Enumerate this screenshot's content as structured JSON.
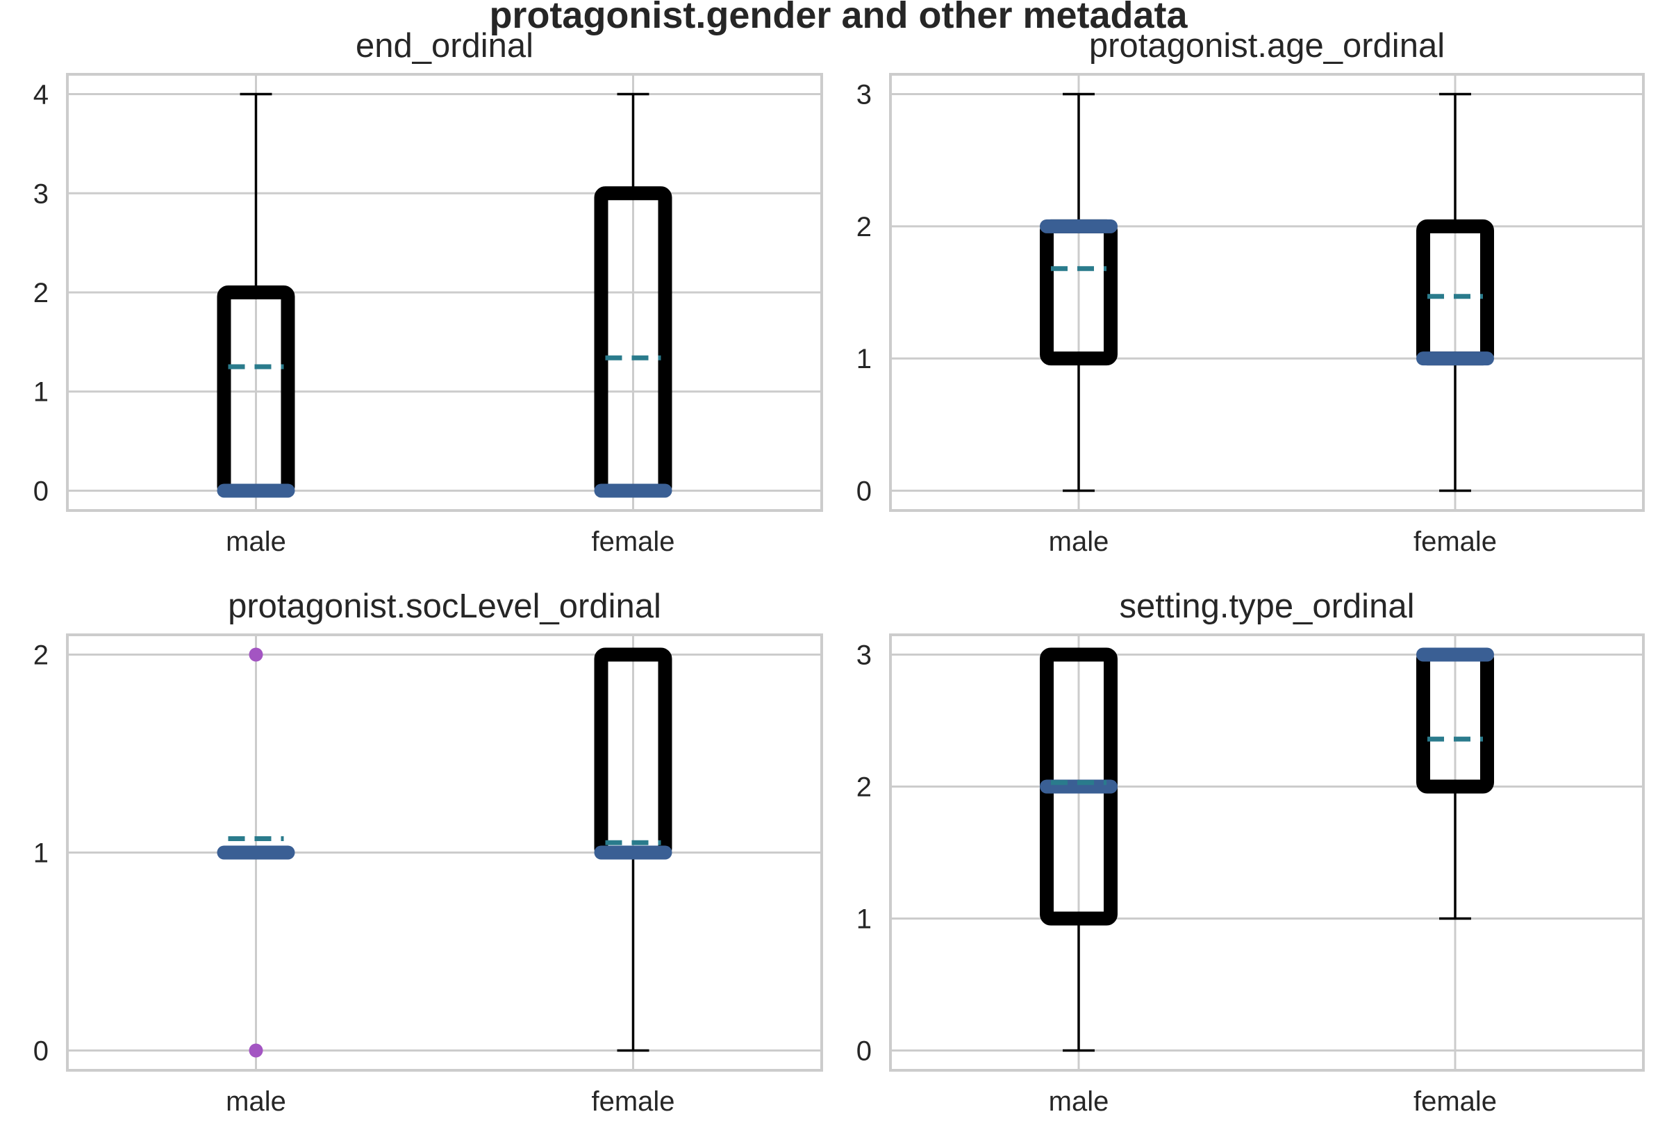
{
  "figure": {
    "title": "protagonist.gender and other metadata"
  },
  "style": {
    "box_color": "#000000",
    "median_color": "#3a5f94",
    "mean_color": "#2a7b8c",
    "flier_color": "#a355c2",
    "grid_color": "#cccccc",
    "spine_color": "#cccccc"
  },
  "chart_data": [
    {
      "type": "box",
      "title": "end_ordinal",
      "categories": [
        "male",
        "female"
      ],
      "ylim": [
        -0.2,
        4.2
      ],
      "yticks": [
        0,
        1,
        2,
        3,
        4
      ],
      "grid": true,
      "boxes": [
        {
          "category": "male",
          "whisker_low": 0,
          "q1": 0,
          "median": 0,
          "q3": 2,
          "whisker_high": 4,
          "mean": 1.25,
          "fliers": []
        },
        {
          "category": "female",
          "whisker_low": 0,
          "q1": 0,
          "median": 0,
          "q3": 3,
          "whisker_high": 4,
          "mean": 1.34,
          "fliers": []
        }
      ]
    },
    {
      "type": "box",
      "title": "protagonist.age_ordinal",
      "categories": [
        "male",
        "female"
      ],
      "ylim": [
        -0.15,
        3.15
      ],
      "yticks": [
        0,
        1,
        2,
        3
      ],
      "grid": true,
      "boxes": [
        {
          "category": "male",
          "whisker_low": 0,
          "q1": 1,
          "median": 2,
          "q3": 2,
          "whisker_high": 3,
          "mean": 1.68,
          "fliers": []
        },
        {
          "category": "female",
          "whisker_low": 0,
          "q1": 1,
          "median": 1,
          "q3": 2,
          "whisker_high": 3,
          "mean": 1.47,
          "fliers": []
        }
      ]
    },
    {
      "type": "box",
      "title": "protagonist.socLevel_ordinal",
      "categories": [
        "male",
        "female"
      ],
      "ylim": [
        -0.1,
        2.1
      ],
      "yticks": [
        0,
        1,
        2
      ],
      "grid": true,
      "boxes": [
        {
          "category": "male",
          "whisker_low": 1,
          "q1": 1,
          "median": 1,
          "q3": 1,
          "whisker_high": 1,
          "mean": 1.07,
          "fliers": [
            0,
            2
          ]
        },
        {
          "category": "female",
          "whisker_low": 0,
          "q1": 1,
          "median": 1,
          "q3": 2,
          "whisker_high": 2,
          "mean": 1.05,
          "fliers": []
        }
      ]
    },
    {
      "type": "box",
      "title": "setting.type_ordinal",
      "categories": [
        "male",
        "female"
      ],
      "ylim": [
        -0.15,
        3.15
      ],
      "yticks": [
        0,
        1,
        2,
        3
      ],
      "grid": true,
      "boxes": [
        {
          "category": "male",
          "whisker_low": 0,
          "q1": 1,
          "median": 2,
          "q3": 3,
          "whisker_high": 3,
          "mean": 2.03,
          "fliers": []
        },
        {
          "category": "female",
          "whisker_low": 1,
          "q1": 2,
          "median": 3,
          "q3": 3,
          "whisker_high": 3,
          "mean": 2.36,
          "fliers": []
        }
      ]
    }
  ]
}
